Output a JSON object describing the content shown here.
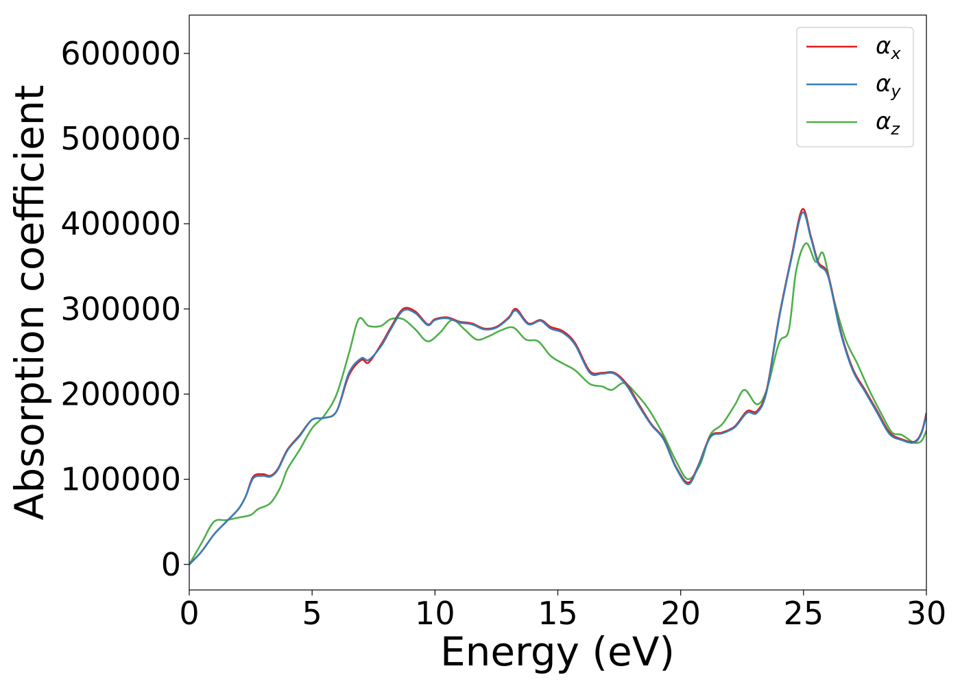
{
  "chart_data": {
    "type": "line",
    "title": "",
    "xlabel": "Energy (eV)",
    "ylabel": "Absorption coefficient",
    "xlim": [
      0,
      30
    ],
    "ylim": [
      -30000,
      645000
    ],
    "xticks": [
      0,
      5,
      10,
      15,
      20,
      25,
      30
    ],
    "xtick_labels": [
      "0",
      "5",
      "10",
      "15",
      "20",
      "25",
      "30"
    ],
    "yticks": [
      0,
      100000,
      200000,
      300000,
      400000,
      500000,
      600000
    ],
    "ytick_labels": [
      "0",
      "100000",
      "200000",
      "300000",
      "400000",
      "500000",
      "600000"
    ],
    "grid": false,
    "legend_position": "top-right",
    "series": [
      {
        "name": "α",
        "subscript": "x",
        "color": "#e41a1c",
        "points": [
          [
            0,
            0
          ],
          [
            0.5,
            15000
          ],
          [
            1,
            35000
          ],
          [
            1.5,
            50000
          ],
          [
            2,
            65000
          ],
          [
            2.3,
            80000
          ],
          [
            2.6,
            103000
          ],
          [
            3,
            106000
          ],
          [
            3.3,
            104000
          ],
          [
            3.6,
            112000
          ],
          [
            4,
            135000
          ],
          [
            4.5,
            152000
          ],
          [
            5,
            170000
          ],
          [
            5.5,
            172000
          ],
          [
            6,
            180000
          ],
          [
            6.5,
            222000
          ],
          [
            7,
            240000
          ],
          [
            7.3,
            237000
          ],
          [
            7.8,
            258000
          ],
          [
            8.2,
            278000
          ],
          [
            8.7,
            300000
          ],
          [
            9.2,
            297000
          ],
          [
            9.7,
            282000
          ],
          [
            10,
            288000
          ],
          [
            10.5,
            290000
          ],
          [
            11,
            285000
          ],
          [
            11.5,
            283000
          ],
          [
            12,
            277000
          ],
          [
            12.5,
            279000
          ],
          [
            13,
            290000
          ],
          [
            13.3,
            300000
          ],
          [
            13.8,
            283000
          ],
          [
            14.3,
            287000
          ],
          [
            14.7,
            279000
          ],
          [
            15.2,
            274000
          ],
          [
            15.7,
            260000
          ],
          [
            16.3,
            227000
          ],
          [
            16.8,
            225000
          ],
          [
            17.3,
            225000
          ],
          [
            17.8,
            212000
          ],
          [
            18.3,
            188000
          ],
          [
            18.8,
            165000
          ],
          [
            19.3,
            148000
          ],
          [
            19.8,
            115000
          ],
          [
            20.3,
            96000
          ],
          [
            20.7,
            115000
          ],
          [
            21.2,
            150000
          ],
          [
            21.7,
            155000
          ],
          [
            22.2,
            162000
          ],
          [
            22.7,
            180000
          ],
          [
            23.1,
            180000
          ],
          [
            23.5,
            205000
          ],
          [
            24,
            290000
          ],
          [
            24.5,
            360000
          ],
          [
            24.95,
            417000
          ],
          [
            25.3,
            385000
          ],
          [
            25.6,
            355000
          ],
          [
            26,
            340000
          ],
          [
            26.5,
            275000
          ],
          [
            27,
            230000
          ],
          [
            27.5,
            205000
          ],
          [
            28,
            180000
          ],
          [
            28.5,
            155000
          ],
          [
            29,
            147000
          ],
          [
            29.5,
            144000
          ],
          [
            29.8,
            155000
          ],
          [
            30,
            178000
          ]
        ]
      },
      {
        "name": "α",
        "subscript": "y",
        "color": "#377eb8",
        "points": [
          [
            0,
            0
          ],
          [
            0.5,
            15000
          ],
          [
            1,
            35000
          ],
          [
            1.5,
            50000
          ],
          [
            2,
            65000
          ],
          [
            2.3,
            80000
          ],
          [
            2.6,
            101000
          ],
          [
            3,
            104000
          ],
          [
            3.3,
            103000
          ],
          [
            3.6,
            111000
          ],
          [
            4,
            134000
          ],
          [
            4.5,
            151000
          ],
          [
            5,
            170000
          ],
          [
            5.5,
            172000
          ],
          [
            6,
            180000
          ],
          [
            6.5,
            225000
          ],
          [
            7,
            242000
          ],
          [
            7.3,
            240000
          ],
          [
            7.8,
            256000
          ],
          [
            8.2,
            276000
          ],
          [
            8.7,
            298000
          ],
          [
            9.2,
            295000
          ],
          [
            9.7,
            281000
          ],
          [
            10,
            287000
          ],
          [
            10.5,
            289000
          ],
          [
            11,
            284000
          ],
          [
            11.5,
            282000
          ],
          [
            12,
            276000
          ],
          [
            12.5,
            278000
          ],
          [
            13,
            289000
          ],
          [
            13.3,
            298000
          ],
          [
            13.8,
            282000
          ],
          [
            14.3,
            286000
          ],
          [
            14.7,
            277000
          ],
          [
            15.2,
            272000
          ],
          [
            15.7,
            258000
          ],
          [
            16.3,
            225000
          ],
          [
            16.8,
            224000
          ],
          [
            17.3,
            224000
          ],
          [
            17.8,
            210000
          ],
          [
            18.3,
            186000
          ],
          [
            18.8,
            164000
          ],
          [
            19.3,
            147000
          ],
          [
            19.8,
            114000
          ],
          [
            20.3,
            94000
          ],
          [
            20.7,
            114000
          ],
          [
            21.2,
            149000
          ],
          [
            21.7,
            154000
          ],
          [
            22.2,
            161000
          ],
          [
            22.7,
            178000
          ],
          [
            23.1,
            178000
          ],
          [
            23.5,
            203000
          ],
          [
            24,
            288000
          ],
          [
            24.5,
            358000
          ],
          [
            24.95,
            413000
          ],
          [
            25.3,
            383000
          ],
          [
            25.6,
            353000
          ],
          [
            26,
            338000
          ],
          [
            26.5,
            273000
          ],
          [
            27,
            228000
          ],
          [
            27.5,
            203000
          ],
          [
            28,
            178000
          ],
          [
            28.5,
            153000
          ],
          [
            29,
            146000
          ],
          [
            29.5,
            143000
          ],
          [
            29.8,
            154000
          ],
          [
            30,
            176000
          ]
        ]
      },
      {
        "name": "α",
        "subscript": "z",
        "color": "#4daf4a",
        "points": [
          [
            0,
            0
          ],
          [
            0.5,
            25000
          ],
          [
            1,
            50000
          ],
          [
            1.5,
            52000
          ],
          [
            2,
            55000
          ],
          [
            2.5,
            58000
          ],
          [
            2.8,
            65000
          ],
          [
            3.3,
            72000
          ],
          [
            3.7,
            90000
          ],
          [
            4,
            112000
          ],
          [
            4.5,
            135000
          ],
          [
            5,
            160000
          ],
          [
            5.5,
            175000
          ],
          [
            6,
            200000
          ],
          [
            6.5,
            248000
          ],
          [
            6.9,
            288000
          ],
          [
            7.3,
            280000
          ],
          [
            7.8,
            280000
          ],
          [
            8.2,
            288000
          ],
          [
            8.7,
            288000
          ],
          [
            9.2,
            276000
          ],
          [
            9.7,
            262000
          ],
          [
            10.2,
            272000
          ],
          [
            10.7,
            287000
          ],
          [
            11.2,
            276000
          ],
          [
            11.7,
            264000
          ],
          [
            12.2,
            268000
          ],
          [
            12.7,
            275000
          ],
          [
            13.2,
            278000
          ],
          [
            13.7,
            264000
          ],
          [
            14.2,
            262000
          ],
          [
            14.7,
            245000
          ],
          [
            15.2,
            236000
          ],
          [
            15.7,
            228000
          ],
          [
            16.3,
            212000
          ],
          [
            16.8,
            209000
          ],
          [
            17.2,
            205000
          ],
          [
            17.7,
            213000
          ],
          [
            18.2,
            200000
          ],
          [
            18.7,
            182000
          ],
          [
            19.3,
            152000
          ],
          [
            19.8,
            122000
          ],
          [
            20.3,
            100000
          ],
          [
            20.8,
            118000
          ],
          [
            21.2,
            152000
          ],
          [
            21.7,
            165000
          ],
          [
            22.2,
            187000
          ],
          [
            22.6,
            205000
          ],
          [
            23.1,
            188000
          ],
          [
            23.5,
            205000
          ],
          [
            24,
            260000
          ],
          [
            24.4,
            275000
          ],
          [
            24.7,
            345000
          ],
          [
            25.1,
            377000
          ],
          [
            25.5,
            355000
          ],
          [
            25.8,
            365000
          ],
          [
            26.2,
            315000
          ],
          [
            26.7,
            265000
          ],
          [
            27.2,
            235000
          ],
          [
            27.7,
            203000
          ],
          [
            28.2,
            175000
          ],
          [
            28.6,
            155000
          ],
          [
            29,
            152000
          ],
          [
            29.5,
            143000
          ],
          [
            29.8,
            145000
          ],
          [
            30,
            157000
          ]
        ]
      }
    ]
  }
}
